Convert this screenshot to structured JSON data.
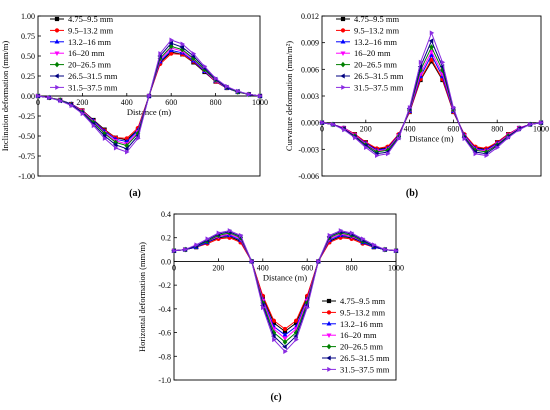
{
  "palette": {
    "series_colors": [
      "#000000",
      "#ff0000",
      "#0000ff",
      "#ff00ff",
      "#008000",
      "#000080",
      "#8a2be2"
    ],
    "markers": [
      "square",
      "circle",
      "triangle-up",
      "triangle-down",
      "diamond",
      "triangle-left",
      "triangle-right"
    ]
  },
  "chart_data": [
    {
      "type": "line",
      "panel_label": "(a)",
      "xlabel": "Distance (m)",
      "ylabel": "Inclination deformation (mm/m)",
      "xlim": [
        0,
        1000
      ],
      "ylim": [
        -1.0,
        1.0
      ],
      "x_ticks": [
        "0",
        "200",
        "400",
        "600",
        "800",
        "1000"
      ],
      "y_ticks": [
        "-1.00",
        "-0.75",
        "-0.50",
        "-0.25",
        "0.00",
        "0.25",
        "0.50",
        "0.75",
        "1.00"
      ],
      "legend_position": "top-left",
      "x": [
        0,
        50,
        100,
        150,
        200,
        250,
        300,
        350,
        400,
        450,
        500,
        550,
        600,
        650,
        700,
        750,
        800,
        850,
        900,
        950,
        1000
      ],
      "series": [
        {
          "name": "4.75–9.5 mm",
          "values": [
            0.0,
            -0.02,
            -0.05,
            -0.1,
            -0.18,
            -0.3,
            -0.42,
            -0.52,
            -0.55,
            -0.42,
            0.0,
            0.42,
            0.55,
            0.52,
            0.42,
            0.3,
            0.18,
            0.1,
            0.05,
            0.02,
            0.0
          ]
        },
        {
          "name": "9.5–13.2 mm",
          "values": [
            0.0,
            -0.02,
            -0.05,
            -0.1,
            -0.18,
            -0.31,
            -0.43,
            -0.52,
            -0.53,
            -0.4,
            0.0,
            0.4,
            0.53,
            0.52,
            0.43,
            0.31,
            0.18,
            0.1,
            0.05,
            0.02,
            0.0
          ]
        },
        {
          "name": "13.2–16 mm",
          "values": [
            0.0,
            -0.02,
            -0.05,
            -0.1,
            -0.19,
            -0.31,
            -0.44,
            -0.54,
            -0.57,
            -0.43,
            0.0,
            0.43,
            0.57,
            0.54,
            0.44,
            0.31,
            0.19,
            0.1,
            0.05,
            0.02,
            0.0
          ]
        },
        {
          "name": "16–20 mm",
          "values": [
            0.0,
            -0.02,
            -0.05,
            -0.11,
            -0.19,
            -0.32,
            -0.46,
            -0.56,
            -0.6,
            -0.45,
            0.0,
            0.45,
            0.6,
            0.56,
            0.46,
            0.32,
            0.19,
            0.11,
            0.05,
            0.02,
            0.0
          ]
        },
        {
          "name": "20–26.5 mm",
          "values": [
            0.0,
            -0.02,
            -0.05,
            -0.11,
            -0.2,
            -0.33,
            -0.47,
            -0.58,
            -0.62,
            -0.47,
            0.0,
            0.47,
            0.62,
            0.58,
            0.47,
            0.33,
            0.2,
            0.11,
            0.05,
            0.02,
            0.0
          ]
        },
        {
          "name": "26.5–31.5 mm",
          "values": [
            0.0,
            -0.02,
            -0.06,
            -0.11,
            -0.21,
            -0.35,
            -0.5,
            -0.61,
            -0.66,
            -0.5,
            0.0,
            0.5,
            0.66,
            0.61,
            0.5,
            0.35,
            0.21,
            0.11,
            0.06,
            0.02,
            0.0
          ]
        },
        {
          "name": "31.5–37.5 mm",
          "values": [
            0.0,
            -0.02,
            -0.06,
            -0.12,
            -0.22,
            -0.37,
            -0.53,
            -0.65,
            -0.7,
            -0.53,
            0.0,
            0.53,
            0.7,
            0.65,
            0.53,
            0.37,
            0.22,
            0.12,
            0.06,
            0.02,
            0.0
          ]
        }
      ]
    },
    {
      "type": "line",
      "panel_label": "(b)",
      "xlabel": "Distance (m)",
      "ylabel": "Curvature deformation (mm/m²)",
      "xlim": [
        0,
        1000
      ],
      "ylim": [
        -0.006,
        0.012
      ],
      "x_ticks": [
        "0",
        "200",
        "400",
        "600",
        "800",
        "1000"
      ],
      "y_ticks": [
        "-0.006",
        "-0.003",
        "0.000",
        "0.003",
        "0.006",
        "0.009",
        "0.012"
      ],
      "legend_position": "top-left",
      "x": [
        0,
        50,
        100,
        150,
        200,
        250,
        300,
        350,
        400,
        450,
        500,
        550,
        600,
        650,
        700,
        750,
        800,
        850,
        900,
        950,
        1000
      ],
      "series": [
        {
          "name": "4.75–9.5 mm",
          "values": [
            0.0,
            -0.0002,
            -0.0006,
            -0.0013,
            -0.0022,
            -0.003,
            -0.0028,
            -0.0014,
            0.0012,
            0.0048,
            0.0069,
            0.0048,
            0.0012,
            -0.0014,
            -0.0028,
            -0.003,
            -0.0022,
            -0.0013,
            -0.0006,
            -0.0002,
            0.0
          ]
        },
        {
          "name": "9.5–13.2 mm",
          "values": [
            0.0,
            -0.0002,
            -0.0006,
            -0.0013,
            -0.0022,
            -0.0029,
            -0.0027,
            -0.0013,
            0.0012,
            0.0049,
            0.0071,
            0.0049,
            0.0012,
            -0.0013,
            -0.0027,
            -0.0029,
            -0.0022,
            -0.0013,
            -0.0006,
            -0.0002,
            0.0
          ]
        },
        {
          "name": "13.2–16 mm",
          "values": [
            0.0,
            -0.0002,
            -0.0006,
            -0.0014,
            -0.0023,
            -0.0031,
            -0.0029,
            -0.0014,
            0.0013,
            0.0052,
            0.0076,
            0.0052,
            0.0013,
            -0.0014,
            -0.0029,
            -0.0031,
            -0.0023,
            -0.0014,
            -0.0006,
            -0.0002,
            0.0
          ]
        },
        {
          "name": "16–20 mm",
          "values": [
            0.0,
            -0.0002,
            -0.0006,
            -0.0014,
            -0.0024,
            -0.0032,
            -0.003,
            -0.0015,
            0.0014,
            0.0055,
            0.008,
            0.0055,
            0.0014,
            -0.0015,
            -0.003,
            -0.0032,
            -0.0024,
            -0.0014,
            -0.0006,
            -0.0002,
            0.0
          ]
        },
        {
          "name": "20–26.5 mm",
          "values": [
            0.0,
            -0.0002,
            -0.0007,
            -0.0015,
            -0.0025,
            -0.0033,
            -0.0031,
            -0.0016,
            0.0015,
            0.0059,
            0.0085,
            0.0059,
            0.0015,
            -0.0016,
            -0.0031,
            -0.0033,
            -0.0025,
            -0.0015,
            -0.0007,
            -0.0002,
            0.0
          ]
        },
        {
          "name": "26.5–31.5 mm",
          "values": [
            0.0,
            -0.0002,
            -0.0007,
            -0.0016,
            -0.0026,
            -0.0035,
            -0.0033,
            -0.0017,
            0.0016,
            0.0063,
            0.0092,
            0.0063,
            0.0016,
            -0.0017,
            -0.0033,
            -0.0035,
            -0.0026,
            -0.0016,
            -0.0007,
            -0.0002,
            0.0
          ]
        },
        {
          "name": "31.5–37.5 mm",
          "values": [
            0.0,
            -0.0002,
            -0.0008,
            -0.0017,
            -0.0028,
            -0.0037,
            -0.0035,
            -0.0018,
            0.0017,
            0.0068,
            0.0101,
            0.0068,
            0.0017,
            -0.0018,
            -0.0035,
            -0.0037,
            -0.0028,
            -0.0017,
            -0.0008,
            -0.0002,
            0.0
          ]
        }
      ]
    },
    {
      "type": "line",
      "panel_label": "(c)",
      "xlabel": "Distance (m)",
      "ylabel": "Horizontal deformation (mm/m)",
      "xlim": [
        0,
        1000
      ],
      "ylim": [
        -1.0,
        0.4
      ],
      "x_ticks": [
        "0",
        "200",
        "400",
        "600",
        "800",
        "1000"
      ],
      "y_ticks": [
        "-1.0",
        "-0.8",
        "-0.6",
        "-0.4",
        "-0.2",
        "0.0",
        "0.2",
        "0.4"
      ],
      "legend_position": "bottom-right",
      "x": [
        0,
        50,
        100,
        150,
        200,
        250,
        300,
        350,
        400,
        450,
        500,
        550,
        600,
        650,
        700,
        750,
        800,
        850,
        900,
        950,
        1000
      ],
      "series": [
        {
          "name": "4.75–9.5 mm",
          "values": [
            0.09,
            0.1,
            0.12,
            0.16,
            0.2,
            0.21,
            0.17,
            0.0,
            -0.3,
            -0.52,
            -0.59,
            -0.52,
            -0.3,
            0.0,
            0.17,
            0.21,
            0.2,
            0.16,
            0.12,
            0.1,
            0.09
          ]
        },
        {
          "name": "9.5–13.2 mm",
          "values": [
            0.09,
            0.1,
            0.12,
            0.15,
            0.19,
            0.2,
            0.16,
            0.0,
            -0.29,
            -0.5,
            -0.57,
            -0.5,
            -0.29,
            0.0,
            0.16,
            0.2,
            0.19,
            0.15,
            0.12,
            0.1,
            0.09
          ]
        },
        {
          "name": "13.2–16 mm",
          "values": [
            0.09,
            0.1,
            0.12,
            0.16,
            0.21,
            0.22,
            0.18,
            0.0,
            -0.32,
            -0.55,
            -0.62,
            -0.55,
            -0.32,
            0.0,
            0.18,
            0.22,
            0.21,
            0.16,
            0.12,
            0.1,
            0.09
          ]
        },
        {
          "name": "16–20 mm",
          "values": [
            0.09,
            0.1,
            0.13,
            0.17,
            0.21,
            0.23,
            0.19,
            0.0,
            -0.33,
            -0.57,
            -0.65,
            -0.57,
            -0.33,
            0.0,
            0.19,
            0.23,
            0.21,
            0.17,
            0.13,
            0.1,
            0.09
          ]
        },
        {
          "name": "20–26.5 mm",
          "values": [
            0.09,
            0.1,
            0.13,
            0.17,
            0.22,
            0.24,
            0.2,
            0.0,
            -0.35,
            -0.6,
            -0.68,
            -0.6,
            -0.35,
            0.0,
            0.2,
            0.24,
            0.22,
            0.17,
            0.13,
            0.1,
            0.09
          ]
        },
        {
          "name": "26.5–31.5 mm",
          "values": [
            0.09,
            0.1,
            0.13,
            0.18,
            0.23,
            0.25,
            0.21,
            0.0,
            -0.37,
            -0.63,
            -0.72,
            -0.63,
            -0.37,
            0.0,
            0.21,
            0.25,
            0.23,
            0.18,
            0.13,
            0.1,
            0.09
          ]
        },
        {
          "name": "31.5–37.5 mm",
          "values": [
            0.09,
            0.1,
            0.14,
            0.19,
            0.24,
            0.26,
            0.22,
            0.0,
            -0.39,
            -0.66,
            -0.76,
            -0.66,
            -0.39,
            0.0,
            0.22,
            0.26,
            0.24,
            0.19,
            0.14,
            0.1,
            0.09
          ]
        }
      ]
    }
  ]
}
